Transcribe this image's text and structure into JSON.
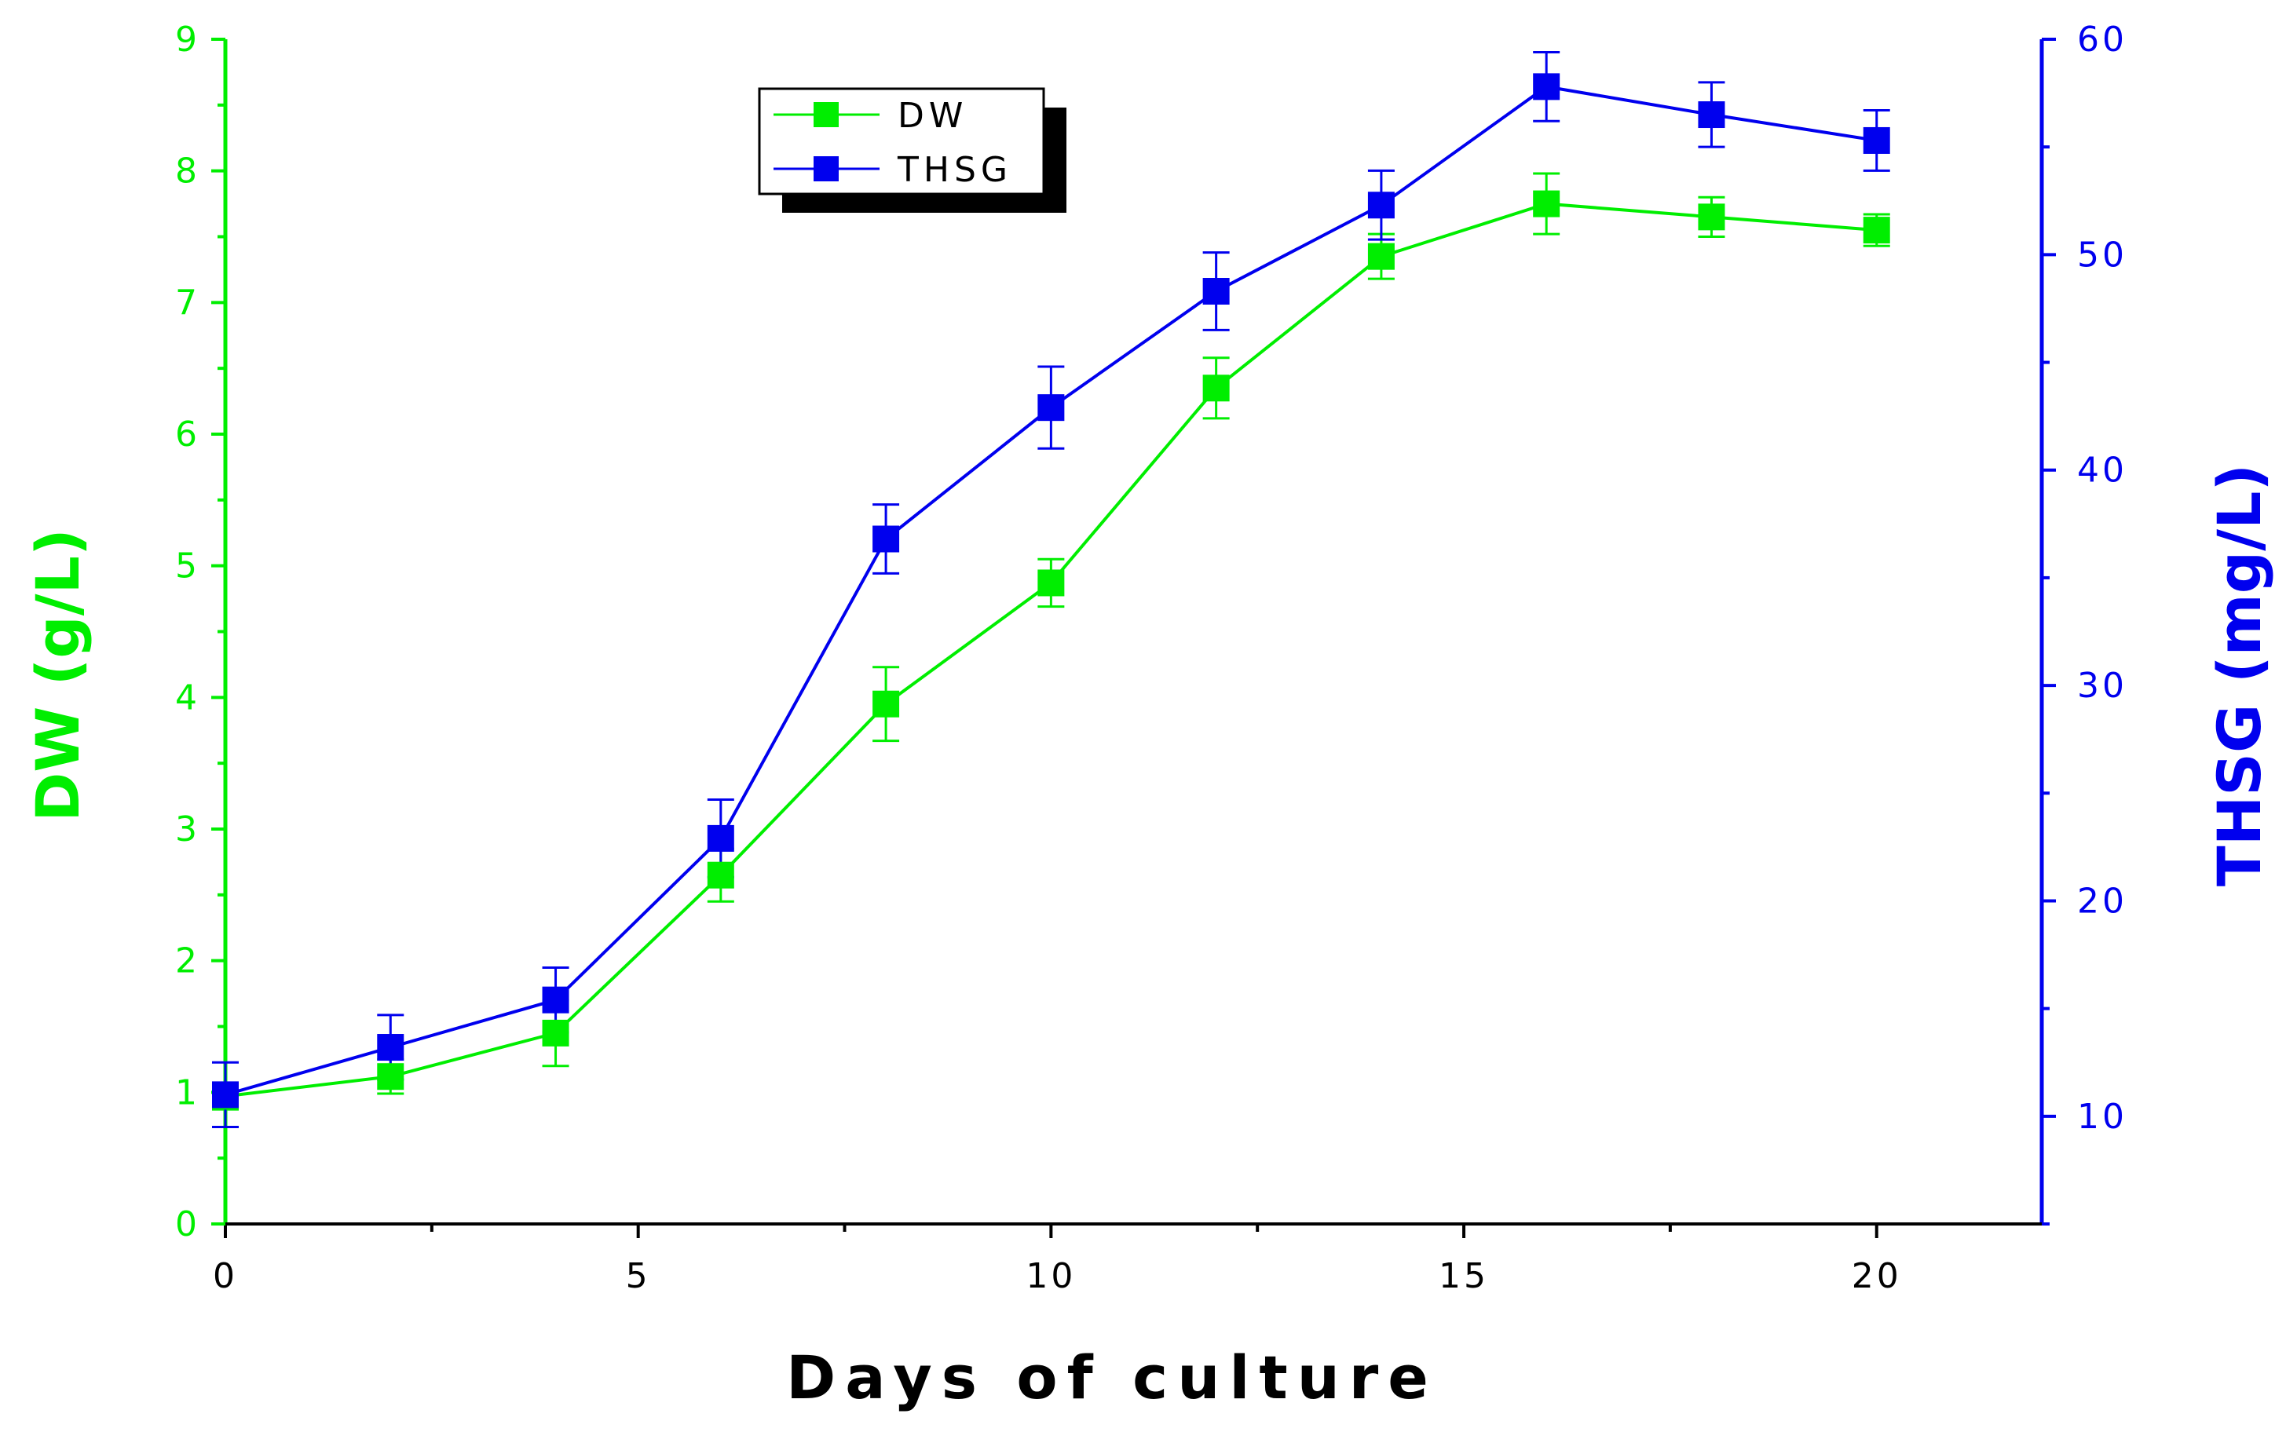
{
  "chart_data": {
    "type": "line",
    "title": "",
    "xlabel": "Days of culture",
    "ylabel_left": "DW (g/L)",
    "ylabel_right": "THSG (mg/L)",
    "xlim": [
      0,
      22
    ],
    "ylim_left": [
      0,
      9
    ],
    "ylim_right": [
      5,
      60
    ],
    "x_ticks": [
      0,
      5,
      10,
      15,
      20
    ],
    "y_left_ticks": [
      0,
      1,
      2,
      3,
      4,
      5,
      6,
      7,
      8,
      9
    ],
    "y_right_ticks": [
      10,
      20,
      30,
      40,
      50,
      60
    ],
    "grid": false,
    "legend_position": "top-center",
    "x": [
      0,
      2,
      4,
      6,
      8,
      10,
      12,
      14,
      16,
      18,
      20
    ],
    "series": [
      {
        "name": "DW",
        "axis": "left",
        "color": "#00ee00",
        "values": [
          0.97,
          1.12,
          1.45,
          2.65,
          3.95,
          4.87,
          6.35,
          7.35,
          7.75,
          7.65,
          7.55
        ],
        "errors": [
          0.1,
          0.13,
          0.25,
          0.2,
          0.28,
          0.18,
          0.23,
          0.17,
          0.23,
          0.15,
          0.12
        ]
      },
      {
        "name": "THSG",
        "axis": "right",
        "color": "#0000ee",
        "values": [
          11.0,
          13.2,
          15.4,
          22.9,
          36.8,
          42.9,
          48.3,
          52.3,
          57.8,
          56.5,
          55.3
        ],
        "errors": [
          1.5,
          1.5,
          1.5,
          1.8,
          1.6,
          1.9,
          1.8,
          1.6,
          1.6,
          1.5,
          1.4
        ]
      }
    ]
  }
}
